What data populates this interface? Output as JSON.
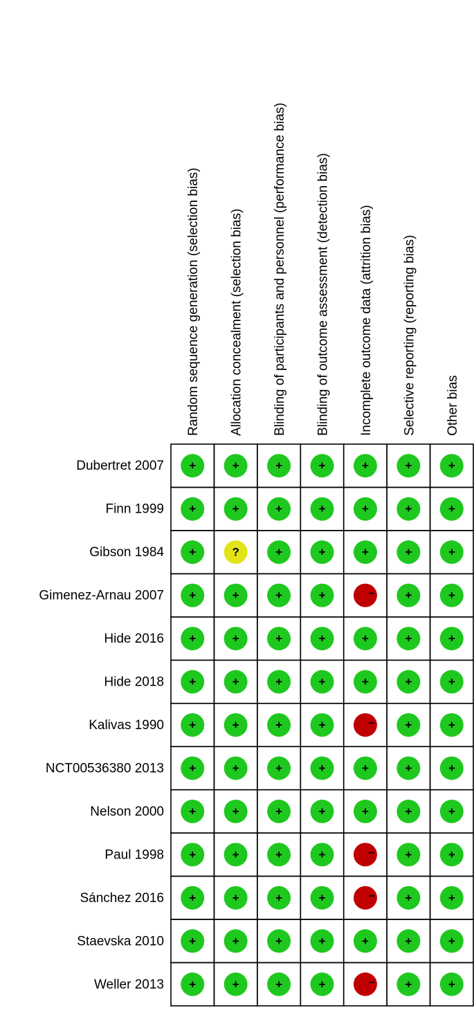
{
  "columns": [
    "Random sequence generation (selection bias)",
    "Allocation concealment (selection bias)",
    "Blinding of participants and personnel (performance bias)",
    "Blinding of outcome assessment (detection bias)",
    "Incomplete outcome data (attrition bias)",
    "Selective reporting (reporting bias)",
    "Other bias"
  ],
  "rows": [
    {
      "study": "Dubertret 2007",
      "judgments": [
        "+",
        "+",
        "+",
        "+",
        "+",
        "+",
        "+"
      ]
    },
    {
      "study": "Finn 1999",
      "judgments": [
        "+",
        "+",
        "+",
        "+",
        "+",
        "+",
        "+"
      ]
    },
    {
      "study": "Gibson 1984",
      "judgments": [
        "+",
        "?",
        "+",
        "+",
        "+",
        "+",
        "+"
      ]
    },
    {
      "study": "Gimenez-Arnau 2007",
      "judgments": [
        "+",
        "+",
        "+",
        "+",
        "–",
        "+",
        "+"
      ]
    },
    {
      "study": "Hide 2016",
      "judgments": [
        "+",
        "+",
        "+",
        "+",
        "+",
        "+",
        "+"
      ]
    },
    {
      "study": "Hide 2018",
      "judgments": [
        "+",
        "+",
        "+",
        "+",
        "+",
        "+",
        "+"
      ]
    },
    {
      "study": "Kalivas 1990",
      "judgments": [
        "+",
        "+",
        "+",
        "+",
        "–",
        "+",
        "+"
      ]
    },
    {
      "study": "NCT00536380 2013",
      "judgments": [
        "+",
        "+",
        "+",
        "+",
        "+",
        "+",
        "+"
      ]
    },
    {
      "study": "Nelson 2000",
      "judgments": [
        "+",
        "+",
        "+",
        "+",
        "+",
        "+",
        "+"
      ]
    },
    {
      "study": "Paul 1998",
      "judgments": [
        "+",
        "+",
        "+",
        "+",
        "–",
        "+",
        "+"
      ]
    },
    {
      "study": "Sánchez 2016",
      "judgments": [
        "+",
        "+",
        "+",
        "+",
        "–",
        "+",
        "+"
      ]
    },
    {
      "study": "Staevska 2010",
      "judgments": [
        "+",
        "+",
        "+",
        "+",
        "+",
        "+",
        "+"
      ]
    },
    {
      "study": "Weller 2013",
      "judgments": [
        "+",
        "+",
        "+",
        "+",
        "–",
        "+",
        "+"
      ]
    }
  ],
  "symbol_colors": {
    "+": "#1ec81e",
    "?": "#e3e31a",
    "–": "#c00000"
  }
}
